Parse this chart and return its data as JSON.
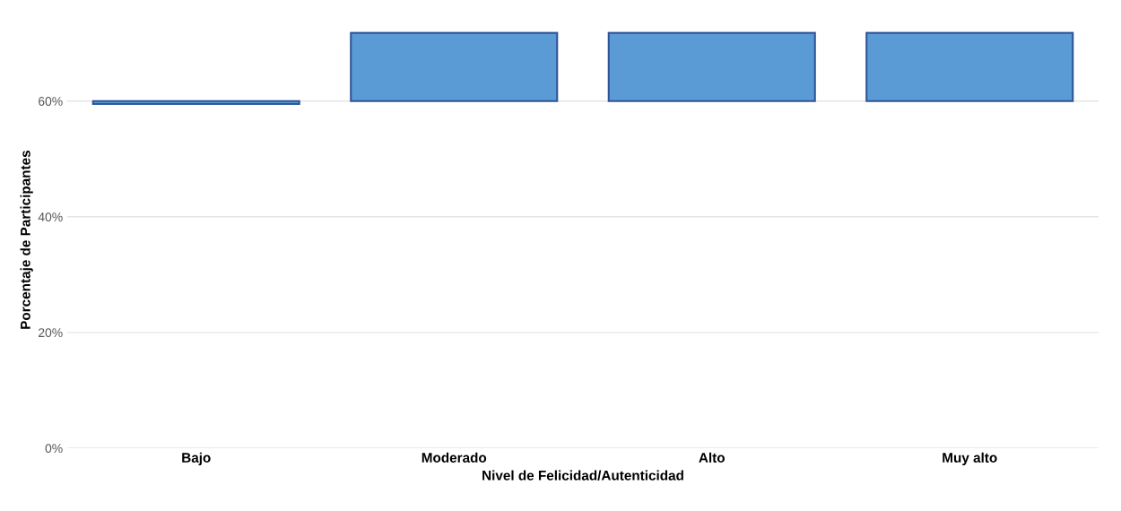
{
  "chart_data": {
    "type": "bar",
    "xlabel": "Nivel de Felicidad/Autenticidad",
    "ylabel": "Porcentaje de Participantes",
    "categories": [
      "Bajo",
      "Moderado",
      "Alto",
      "Muy alto"
    ],
    "base": [
      60,
      60,
      60,
      60
    ],
    "values": [
      -0.5,
      11.8,
      11.8,
      11.8
    ],
    "color": "#5b9bd5",
    "ylim": [
      0,
      72
    ],
    "yticks": [
      {
        "value": 0,
        "label": "0%"
      },
      {
        "value": 20,
        "label": "20%"
      },
      {
        "value": 40,
        "label": "40%"
      },
      {
        "value": 60,
        "label": "60%"
      }
    ],
    "grid": "y",
    "legend": false
  }
}
